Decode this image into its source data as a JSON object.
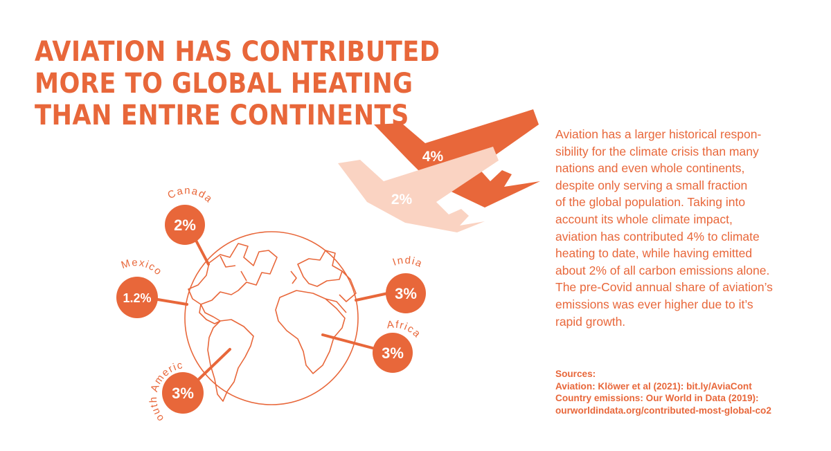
{
  "colors": {
    "accent": "#E8673A",
    "light": "#FAD3C2",
    "white": "#FFFFFF"
  },
  "headline": {
    "lines": [
      "AVIATION HAS CONTRIBUTED",
      "MORE TO GLOBAL HEATING",
      "THAN ENTIRE CONTINENTS"
    ]
  },
  "planes": {
    "aviation_contribution": "4%",
    "aviation_emissions": "2%"
  },
  "regions": [
    {
      "name": "Canada",
      "value": "2%"
    },
    {
      "name": "Mexico",
      "value": "1.2%"
    },
    {
      "name": "India",
      "value": "3%"
    },
    {
      "name": "Africa",
      "value": "3%"
    },
    {
      "name": "South America",
      "value": "3%"
    }
  ],
  "body": {
    "lines": [
      "Aviation has a larger historical respon-",
      "sibility for the climate crisis than many",
      "nations and even whole continents,",
      "despite only serving a small fraction",
      "of the global population. Taking into",
      "account its whole climate impact,",
      "aviation has contributed 4% to climate",
      "heating to date, while having emitted",
      "about 2% of all carbon emissions alone.",
      "The pre-Covid annual share of aviation’s",
      "emissions was ever higher due to it’s",
      "rapid growth."
    ]
  },
  "sources": {
    "heading": "Sources:",
    "aviation": "Aviation: Klöwer et al (2021): bit.ly/AviaCont",
    "country": "Country emissions: Our World in Data (2019):",
    "url": "ourworldindata.org/contributed-most-global-co2"
  }
}
